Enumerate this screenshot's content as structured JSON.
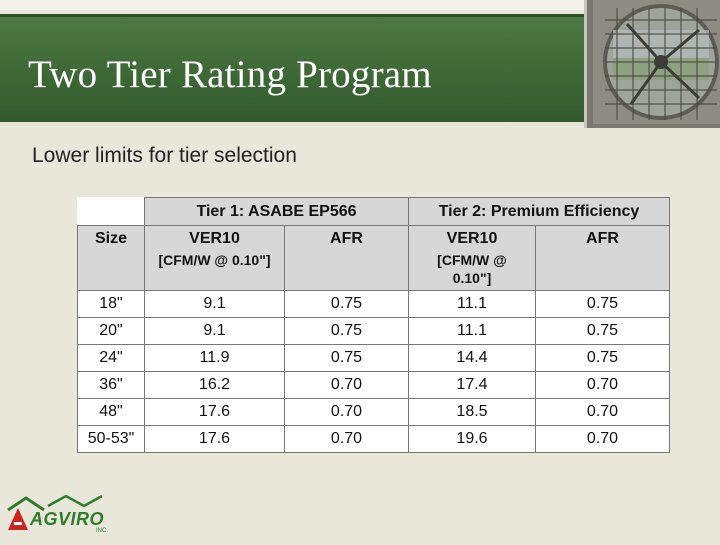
{
  "slide": {
    "title": "Two Tier Rating Program",
    "subtitle": "Lower limits for tier selection",
    "colors": {
      "title_band": "#3f6a37",
      "background": "#e9e6da",
      "header_fill": "#d7d7d7",
      "logo_green": "#2e7d2a",
      "logo_red": "#c8251e"
    },
    "icons": {
      "fan": "fan-photo-icon",
      "logo": "agviro-logo-icon"
    }
  },
  "table": {
    "tier1": "Tier 1: ASABE EP566",
    "tier2": "Tier 2: Premium Efficiency",
    "col_size": "Size",
    "t1_ver": "VER10",
    "t1_ver_unit": "[CFM/W @ 0.10\"]",
    "t1_afr": "AFR",
    "t2_ver": "VER10",
    "t2_ver_unit": "[CFM/W @ 0.10\"]",
    "t2_afr": "AFR",
    "rows": [
      {
        "size": "18\"",
        "t1_ver": "9.1",
        "t1_afr": "0.75",
        "t2_ver": "11.1",
        "t2_afr": "0.75"
      },
      {
        "size": "20\"",
        "t1_ver": "9.1",
        "t1_afr": "0.75",
        "t2_ver": "11.1",
        "t2_afr": "0.75"
      },
      {
        "size": "24\"",
        "t1_ver": "11.9",
        "t1_afr": "0.75",
        "t2_ver": "14.4",
        "t2_afr": "0.75"
      },
      {
        "size": "36\"",
        "t1_ver": "16.2",
        "t1_afr": "0.70",
        "t2_ver": "17.4",
        "t2_afr": "0.70"
      },
      {
        "size": "48\"",
        "t1_ver": "17.6",
        "t1_afr": "0.70",
        "t2_ver": "18.5",
        "t2_afr": "0.70"
      },
      {
        "size": "50-53\"",
        "t1_ver": "17.6",
        "t1_afr": "0.70",
        "t2_ver": "19.6",
        "t2_afr": "0.70"
      }
    ]
  },
  "logo": {
    "brand": "AGVIRO",
    "suffix": "INC."
  }
}
